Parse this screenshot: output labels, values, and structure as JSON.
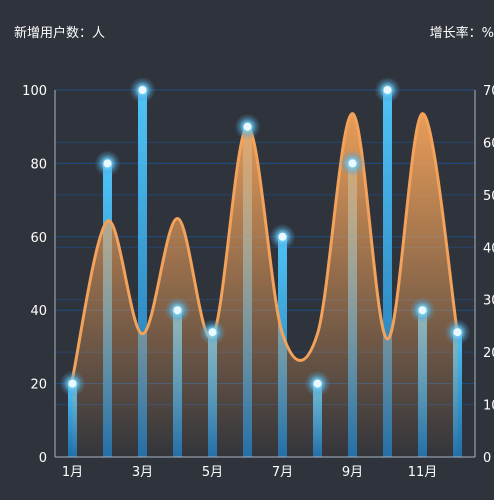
{
  "colors": {
    "background": "#2f333b",
    "grid": "#1f4f86",
    "bar_top": "#4fc3f7",
    "bar_bottom": "#1f6ea8",
    "line": "#f2a25a",
    "area_top": "#f2a25a",
    "text": "#ffffff"
  },
  "chart_data": {
    "type": "bar",
    "categories": [
      "1月",
      "2月",
      "3月",
      "4月",
      "5月",
      "6月",
      "7月",
      "8月",
      "9月",
      "10月",
      "11月",
      "12月"
    ],
    "x_tick_labels": [
      "1月",
      "3月",
      "5月",
      "7月",
      "9月",
      "11月"
    ],
    "left_axis_name": "新增用户数：人",
    "right_axis_name": "增长率：%",
    "left_ylim": [
      0,
      100
    ],
    "left_ticks": [
      0,
      20,
      40,
      60,
      80,
      100
    ],
    "right_ylim": [
      0,
      70
    ],
    "right_ticks": [
      0,
      10,
      20,
      30,
      40,
      50,
      60,
      70
    ],
    "grid": true,
    "series": [
      {
        "type": "bar",
        "axis": "left",
        "values": [
          20,
          80,
          100,
          40,
          34,
          90,
          60,
          20,
          80,
          100,
          40,
          34
        ]
      },
      {
        "type": "line",
        "axis": "right",
        "smooth": true,
        "area": true,
        "values": [
          15,
          45,
          23.5,
          45.5,
          23,
          63,
          23.5,
          23.5,
          65.5,
          22.5,
          65.5,
          23.5
        ]
      }
    ]
  }
}
